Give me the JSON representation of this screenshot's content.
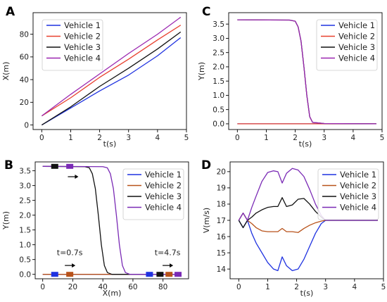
{
  "colors": {
    "vehicle1": "#1f32e0",
    "vehicle2": "#e8402e",
    "vehicle3": "#111111",
    "vehicle4": "#9a26b0",
    "vehicle2_alt": "#b8521a",
    "vehicle4_alt": "#7a2ab5"
  },
  "chart_data": [
    {
      "panel": "A",
      "type": "line",
      "xlabel": "t(s)",
      "ylabel": "X(m)",
      "xlim": [
        -0.3,
        5.0
      ],
      "ylim": [
        -4,
        99
      ],
      "xticks": [
        0,
        1,
        2,
        3,
        4,
        5
      ],
      "yticks": [
        0,
        20,
        40,
        60,
        80
      ],
      "grid": false,
      "legend": "top-left",
      "series": [
        {
          "name": "Vehicle 1",
          "color": "#1f32e0",
          "x": [
            0,
            1,
            2,
            2.5,
            3,
            4,
            4.8
          ],
          "y": [
            0,
            15,
            30,
            37,
            44,
            61,
            77
          ]
        },
        {
          "name": "Vehicle 2",
          "color": "#e8402e",
          "x": [
            0,
            1,
            2,
            3,
            4,
            4.8
          ],
          "y": [
            8,
            24,
            42,
            58,
            75,
            88
          ]
        },
        {
          "name": "Vehicle 3",
          "color": "#111111",
          "x": [
            0,
            1,
            2,
            3,
            4,
            4.8
          ],
          "y": [
            0,
            16,
            34,
            50,
            67,
            82
          ]
        },
        {
          "name": "Vehicle 4",
          "color": "#9a26b0",
          "x": [
            0,
            1,
            2,
            3,
            4,
            4.8
          ],
          "y": [
            8,
            27,
            45,
            63,
            80,
            95
          ]
        }
      ]
    },
    {
      "panel": "C",
      "type": "line",
      "xlabel": "t(s)",
      "ylabel": "Y(m)",
      "xlim": [
        -0.3,
        5.0
      ],
      "ylim": [
        -0.2,
        3.9
      ],
      "xticks": [
        0,
        1,
        2,
        3,
        4,
        5
      ],
      "yticks": [
        0.0,
        0.5,
        1.0,
        1.5,
        2.0,
        2.5,
        3.0,
        3.5
      ],
      "grid": false,
      "legend": "top-right",
      "series": [
        {
          "name": "Vehicle 1",
          "color": "#1f32e0",
          "x": [
            0,
            4.8
          ],
          "y": [
            0,
            0
          ]
        },
        {
          "name": "Vehicle 2",
          "color": "#e8402e",
          "x": [
            0,
            4.8
          ],
          "y": [
            0,
            0
          ]
        },
        {
          "name": "Vehicle 3",
          "color": "#111111",
          "x": [
            0,
            1.8,
            2.0,
            2.1,
            2.2,
            2.3,
            2.4,
            2.5,
            2.6,
            2.8,
            3.0,
            4.8
          ],
          "y": [
            3.65,
            3.64,
            3.6,
            3.4,
            2.9,
            2.0,
            1.0,
            0.25,
            0.05,
            0.03,
            0.01,
            0
          ]
        },
        {
          "name": "Vehicle 4",
          "color": "#9a26b0",
          "x": [
            0,
            1.8,
            2.0,
            2.1,
            2.2,
            2.3,
            2.4,
            2.5,
            2.6,
            2.8,
            3.0,
            4.8
          ],
          "y": [
            3.65,
            3.64,
            3.6,
            3.4,
            2.9,
            2.0,
            1.0,
            0.25,
            0.05,
            0.03,
            0.01,
            0
          ]
        }
      ]
    },
    {
      "panel": "B",
      "type": "line",
      "xlabel": "X(m)",
      "ylabel": "Y(m)",
      "xlim": [
        -5,
        97
      ],
      "ylim": [
        -0.15,
        3.8
      ],
      "xticks": [
        0,
        20,
        40,
        60,
        80
      ],
      "yticks": [
        0.0,
        0.5,
        1.0,
        1.5,
        2.0,
        2.5,
        3.0,
        3.5
      ],
      "grid": false,
      "legend": "top-right",
      "annotations": [
        {
          "text": "t=0.7s",
          "x": 18,
          "y": 0.65
        },
        {
          "text": "t=4.7s",
          "x": 83,
          "y": 0.65
        }
      ],
      "arrows": [
        {
          "x": 20,
          "y": 3.3
        },
        {
          "x": 18,
          "y": 0.3
        },
        {
          "x": 83,
          "y": 0.3
        }
      ],
      "vehicles": [
        {
          "x": 8,
          "y": 0,
          "color": "#1f32e0"
        },
        {
          "x": 18,
          "y": 0,
          "color": "#b8521a"
        },
        {
          "x": 8,
          "y": 3.65,
          "color": "#111111"
        },
        {
          "x": 18,
          "y": 3.65,
          "color": "#7a2ab5"
        },
        {
          "x": 71,
          "y": 0,
          "color": "#1f32e0"
        },
        {
          "x": 78,
          "y": 0,
          "color": "#111111"
        },
        {
          "x": 84,
          "y": 0,
          "color": "#b8521a"
        },
        {
          "x": 90,
          "y": 0,
          "color": "#7a2ab5"
        }
      ],
      "series": [
        {
          "name": "Vehicle 1",
          "color": "#1f32e0",
          "x": [
            0,
            92
          ],
          "y": [
            0,
            0
          ]
        },
        {
          "name": "Vehicle 2",
          "color": "#b8521a",
          "x": [
            0,
            92
          ],
          "y": [
            0,
            0
          ]
        },
        {
          "name": "Vehicle 3",
          "color": "#111111",
          "x": [
            0,
            28,
            31,
            33,
            35,
            37,
            39,
            41,
            43,
            46,
            90
          ],
          "y": [
            3.65,
            3.64,
            3.6,
            3.4,
            2.9,
            2.0,
            1.0,
            0.3,
            0.06,
            0,
            0
          ]
        },
        {
          "name": "Vehicle 4",
          "color": "#7a2ab5",
          "x": [
            0,
            40,
            43,
            45,
            47,
            49,
            51,
            53,
            55,
            58,
            90
          ],
          "y": [
            3.65,
            3.64,
            3.6,
            3.4,
            2.9,
            2.0,
            1.0,
            0.3,
            0.06,
            0,
            0
          ]
        }
      ]
    },
    {
      "panel": "D",
      "type": "line",
      "xlabel": "t(s)",
      "ylabel": "V(m/s)",
      "xlim": [
        -0.3,
        5.0
      ],
      "ylim": [
        13.4,
        20.6
      ],
      "xticks": [
        0,
        1,
        2,
        3,
        4,
        5
      ],
      "yticks": [
        14,
        15,
        16,
        17,
        18,
        19,
        20
      ],
      "grid": false,
      "legend": "top-right",
      "series": [
        {
          "name": "Vehicle 1",
          "color": "#1f32e0",
          "x": [
            0,
            0.15,
            0.3,
            0.45,
            0.6,
            0.8,
            1.0,
            1.2,
            1.35,
            1.5,
            1.65,
            1.85,
            2.05,
            2.25,
            2.45,
            2.65,
            2.85,
            3.0,
            4.8
          ],
          "y": [
            17.0,
            16.55,
            17.0,
            16.2,
            15.6,
            15.0,
            14.4,
            14.0,
            13.9,
            14.75,
            14.2,
            13.9,
            14.0,
            14.6,
            15.4,
            16.2,
            16.8,
            17.0,
            17.0
          ]
        },
        {
          "name": "Vehicle 2",
          "color": "#b8521a",
          "x": [
            0,
            0.15,
            0.3,
            0.45,
            0.6,
            0.8,
            1.0,
            1.2,
            1.35,
            1.5,
            1.65,
            1.85,
            2.05,
            2.25,
            2.45,
            2.65,
            2.85,
            3.0,
            4.8
          ],
          "y": [
            17.0,
            17.45,
            17.0,
            16.8,
            16.55,
            16.35,
            16.3,
            16.3,
            16.3,
            16.5,
            16.3,
            16.3,
            16.25,
            16.5,
            16.7,
            16.85,
            16.95,
            17.0,
            17.0
          ]
        },
        {
          "name": "Vehicle 3",
          "color": "#111111",
          "x": [
            0,
            0.15,
            0.3,
            0.45,
            0.6,
            0.8,
            1.0,
            1.2,
            1.35,
            1.5,
            1.65,
            1.85,
            2.05,
            2.25,
            2.45,
            2.65,
            2.85,
            3.0,
            4.8
          ],
          "y": [
            17.0,
            16.55,
            17.0,
            17.2,
            17.45,
            17.65,
            17.8,
            17.85,
            17.85,
            18.4,
            17.85,
            17.95,
            18.3,
            18.35,
            18.0,
            17.55,
            17.2,
            17.0,
            17.0
          ]
        },
        {
          "name": "Vehicle 4",
          "color": "#7a2ab5",
          "x": [
            0,
            0.15,
            0.3,
            0.45,
            0.6,
            0.8,
            1.0,
            1.2,
            1.35,
            1.5,
            1.65,
            1.85,
            2.05,
            2.25,
            2.45,
            2.65,
            2.85,
            3.0,
            4.8
          ],
          "y": [
            17.0,
            17.45,
            17.0,
            17.8,
            18.5,
            19.4,
            19.95,
            20.05,
            20.0,
            19.3,
            19.9,
            20.2,
            20.1,
            19.7,
            18.9,
            18.0,
            17.3,
            17.0,
            17.0
          ]
        }
      ]
    }
  ]
}
